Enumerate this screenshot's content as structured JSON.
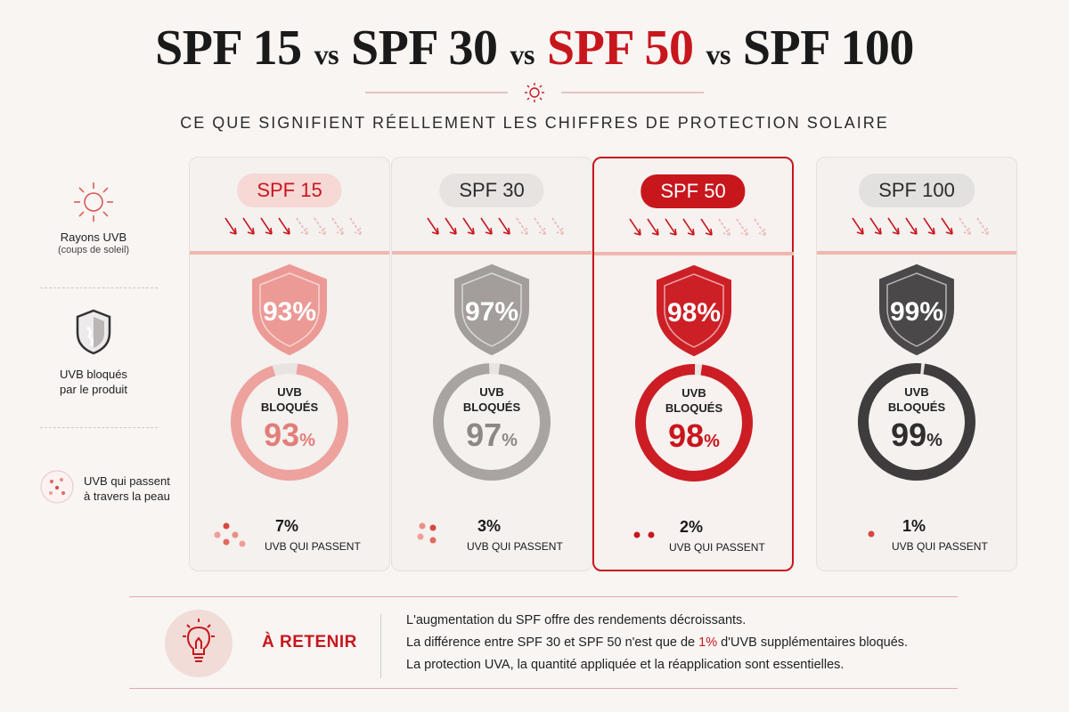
{
  "title": {
    "spf15": "SPF 15",
    "vs1": "vs",
    "spf30": "SPF 30",
    "vs2": "vs",
    "spf50": "SPF 50",
    "vs3": "vs",
    "spf100": "SPF 100"
  },
  "subtitle": "CE QUE SIGNIFIENT RÉELLEMENT LES CHIFFRES DE PROTECTION SOLAIRE",
  "legend": {
    "rays_label": "Rayons UVB",
    "rays_sub": "(coups de soleil)",
    "blocked_label_1": "UVB bloqués",
    "blocked_label_2": "par le produit",
    "pass_label_1": "UVB qui passent",
    "pass_label_2": "à travers la peau"
  },
  "ring_label_1": "UVB",
  "ring_label_2": "BLOQUÉS",
  "pass_label": "UVB QUI PASSENT",
  "cards": [
    {
      "name": "SPF 15",
      "shield": "93%",
      "ring_num": "93",
      "pct_sign": "%",
      "blocked_fraction": 0.93,
      "pass": "7%",
      "color": "#e8938f",
      "pill_bg": "#f6d8d5",
      "pill_fg": "#c8161d",
      "shield_color": "#ec9a96",
      "ring_color": "#eda29d",
      "num_color": "#e27e79"
    },
    {
      "name": "SPF 30",
      "shield": "97%",
      "ring_num": "97",
      "pct_sign": "%",
      "blocked_fraction": 0.97,
      "pass": "3%",
      "color": "#9b9593",
      "pill_bg": "#e6e3e1",
      "pill_fg": "#2b2b2b",
      "shield_color": "#a39e9b",
      "ring_color": "#a9a4a1",
      "num_color": "#8d8886"
    },
    {
      "name": "SPF 50",
      "shield": "98%",
      "ring_num": "98",
      "pct_sign": "%",
      "blocked_fraction": 0.98,
      "pass": "2%",
      "color": "#c8161d",
      "pill_bg": "#c8161d",
      "pill_fg": "#ffffff",
      "shield_color": "#cc2026",
      "ring_color": "#cc1d24",
      "num_color": "#c8161d"
    },
    {
      "name": "SPF 100",
      "shield": "99%",
      "ring_num": "99",
      "pct_sign": "%",
      "blocked_fraction": 0.99,
      "pass": "1%",
      "color": "#3a3a3a",
      "pill_bg": "#e3e1e0",
      "pill_fg": "#2b2b2b",
      "shield_color": "#4a4848",
      "ring_color": "#3e3c3c",
      "num_color": "#2f2d2d"
    }
  ],
  "takeaway": {
    "heading": "À RETENIR",
    "line1": "L'augmentation du SPF offre des rendements décroissants.",
    "line2_pre": "La différence entre SPF 30 et SPF 50 n'est que de ",
    "line2_hl": "1%",
    "line2_post": " d'UVB supplémentaires bloqués.",
    "line3": "La protection UVA, la quantité appliquée et la réapplication sont essentielles."
  },
  "colors": {
    "accent": "#c8161d",
    "background": "#f8f5f3"
  }
}
